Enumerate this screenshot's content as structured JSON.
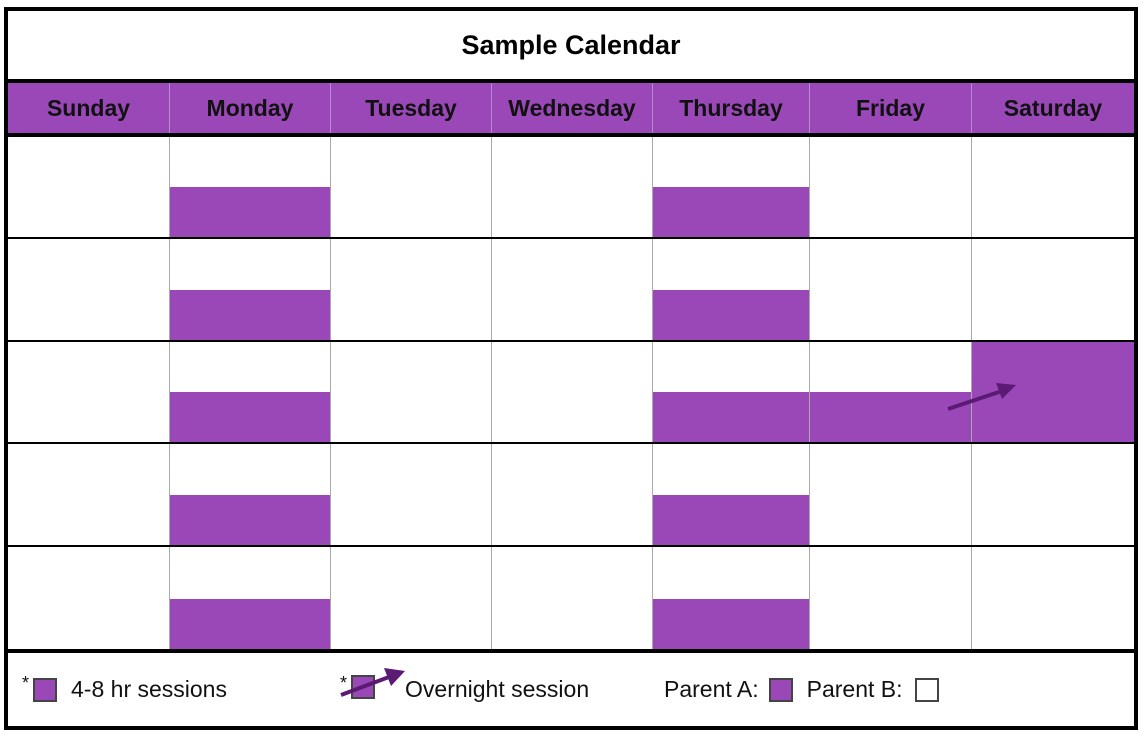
{
  "title": "Sample Calendar",
  "colors": {
    "session": "#9a48b8",
    "header": "#9a48b8",
    "arrow": "#5b1a73",
    "parent_b": "#ffffff"
  },
  "days": [
    "Sunday",
    "Monday",
    "Tuesday",
    "Wednesday",
    "Thursday",
    "Friday",
    "Saturday"
  ],
  "weeks": [
    {
      "sessions": [
        "none",
        "partial",
        "none",
        "none",
        "partial",
        "none",
        "none"
      ]
    },
    {
      "sessions": [
        "none",
        "partial",
        "none",
        "none",
        "partial",
        "none",
        "none"
      ]
    },
    {
      "sessions": [
        "none",
        "partial",
        "none",
        "none",
        "partial",
        "partial",
        "full"
      ],
      "overnight_arrow": true
    },
    {
      "sessions": [
        "none",
        "partial",
        "none",
        "none",
        "partial",
        "none",
        "none"
      ]
    },
    {
      "sessions": [
        "none",
        "partial",
        "none",
        "none",
        "partial",
        "none",
        "none"
      ]
    }
  ],
  "legend": {
    "asterisk": "*",
    "sessions_label": "4-8 hr sessions",
    "overnight_label": "Overnight session",
    "parent_a_label": "Parent A:",
    "parent_b_label": "Parent B:"
  }
}
